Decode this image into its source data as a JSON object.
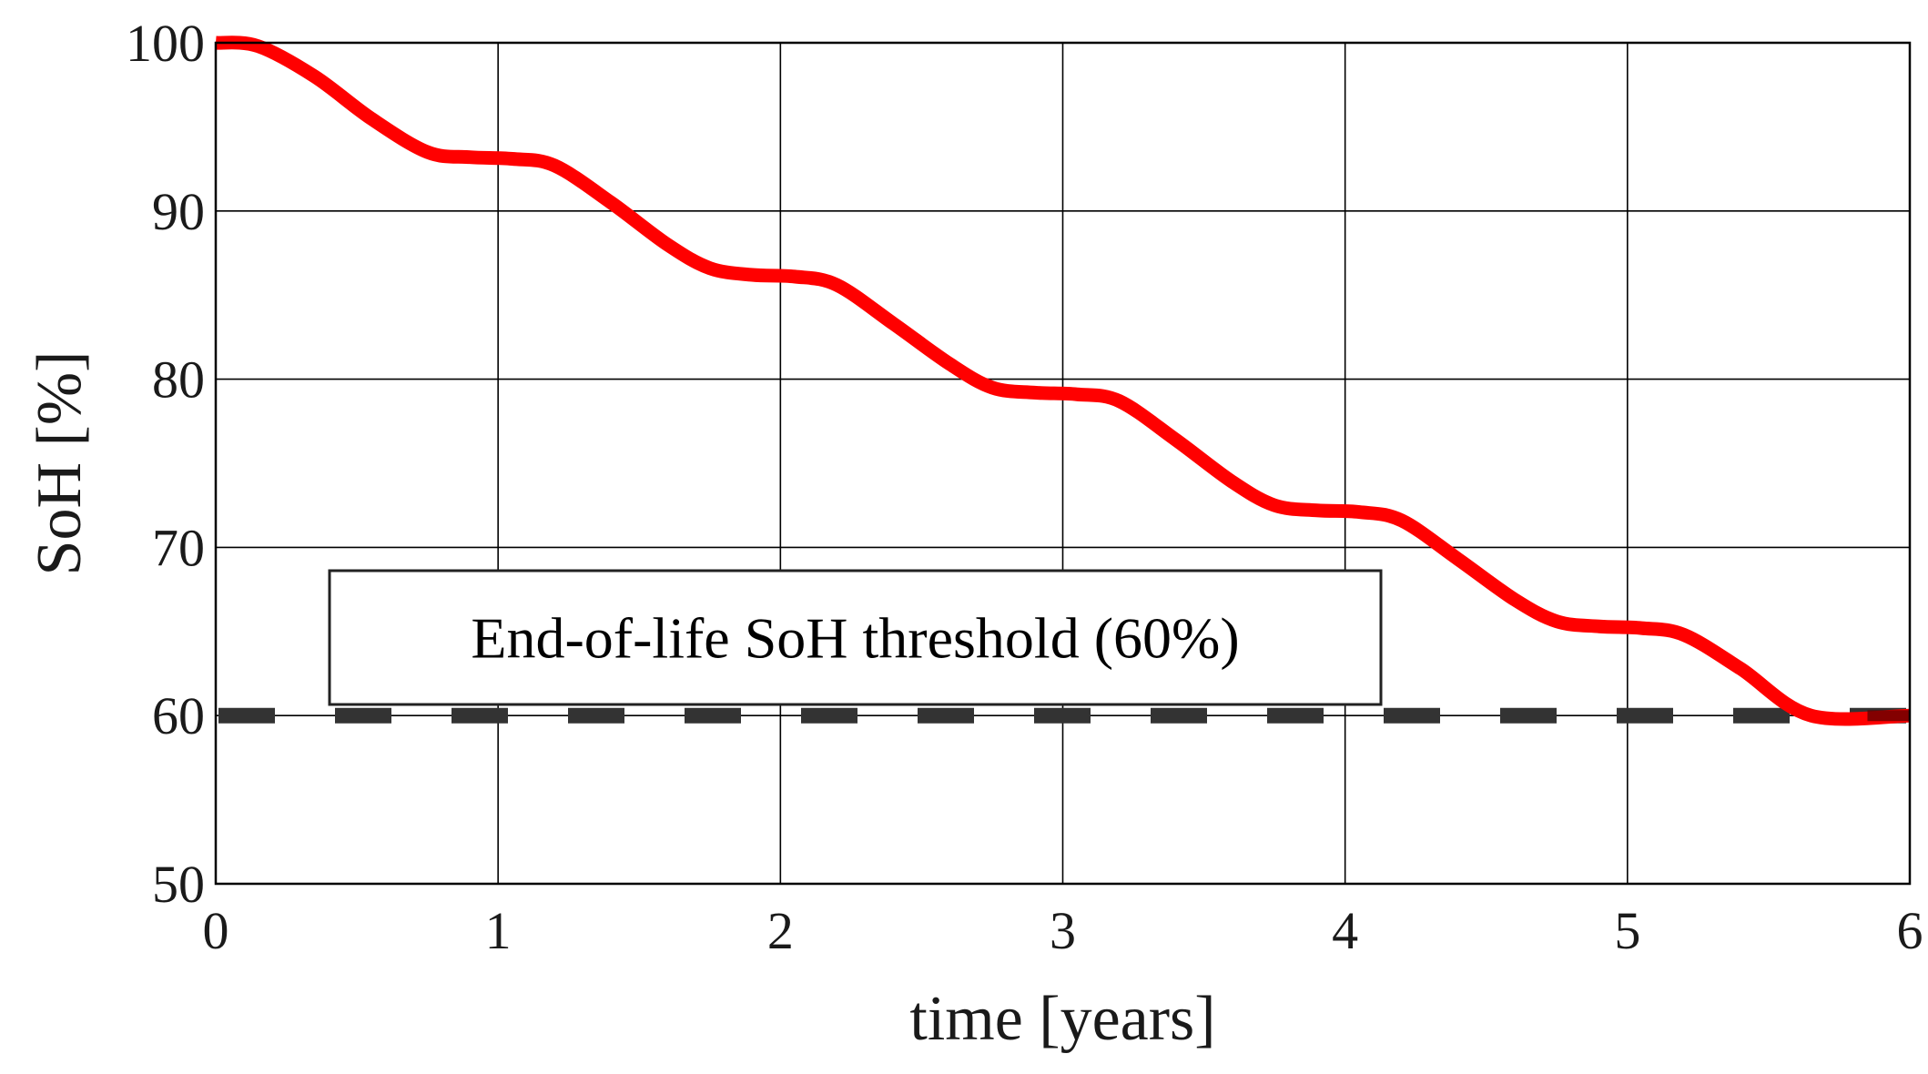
{
  "chart_data": {
    "type": "line",
    "xlabel": "time [years]",
    "ylabel": "SoH [%]",
    "xlim": [
      0,
      6
    ],
    "ylim": [
      50,
      100
    ],
    "xticks": [
      0,
      1,
      2,
      3,
      4,
      5,
      6
    ],
    "yticks": [
      50,
      60,
      70,
      80,
      90,
      100
    ],
    "grid": true,
    "colors": {
      "soh_line": "#ff0000",
      "threshold_line": "#333333",
      "grid": "#000000"
    },
    "series": [
      {
        "x": [
          0,
          0.15,
          0.35,
          0.55,
          0.75,
          0.9,
          1.05,
          1.2,
          1.4,
          1.6,
          1.75,
          1.9,
          2.05,
          2.2,
          2.4,
          2.6,
          2.75,
          2.9,
          3.05,
          3.2,
          3.4,
          3.6,
          3.75,
          3.9,
          4.05,
          4.2,
          4.4,
          4.6,
          4.75,
          4.9,
          5.05,
          5.2,
          5.4,
          5.65,
          6.0
        ],
        "y": [
          100,
          99.8,
          98.0,
          95.5,
          93.5,
          93.2,
          93.1,
          92.7,
          90.5,
          88.0,
          86.6,
          86.2,
          86.1,
          85.6,
          83.3,
          80.9,
          79.5,
          79.2,
          79.1,
          78.7,
          76.4,
          73.9,
          72.5,
          72.2,
          72.1,
          71.6,
          69.3,
          66.9,
          65.6,
          65.3,
          65.2,
          64.8,
          62.8,
          60.0,
          60.0
        ]
      },
      {
        "x": [
          0,
          6
        ],
        "y": [
          60,
          60
        ]
      }
    ],
    "annotations": [
      {
        "text": "End-of-life SoH threshold (60%)",
        "x": 2.35,
        "y": 65.7
      }
    ]
  }
}
